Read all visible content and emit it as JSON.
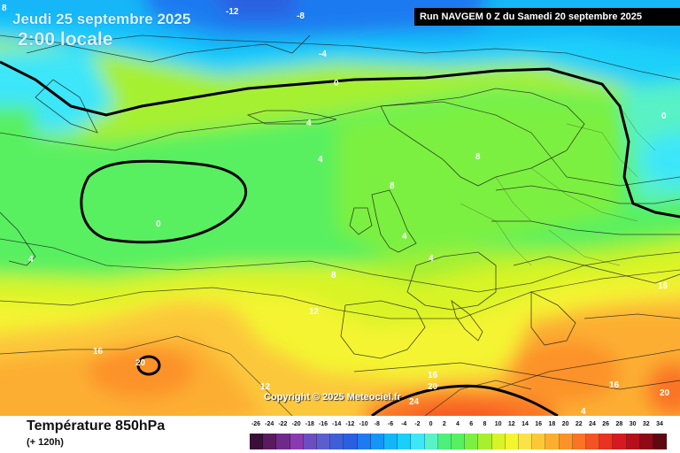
{
  "header": {
    "date_label": "Jeudi 25 septembre 2025",
    "time_label": "2:00 locale",
    "run_label": "Run NAVGEM 0 Z du Samedi 20 septembre 2025"
  },
  "footer": {
    "field_title": "Température 850hPa",
    "lead_time": "(+ 120h)",
    "copyright": "Copyright © 2025 Meteociel.fr"
  },
  "legend": {
    "ticks": [
      "-26",
      "-24",
      "-22",
      "-20",
      "-18",
      "-16",
      "-14",
      "-12",
      "-10",
      "-8",
      "-6",
      "-4",
      "-2",
      "0",
      "2",
      "4",
      "6",
      "8",
      "10",
      "12",
      "14",
      "16",
      "18",
      "20",
      "22",
      "24",
      "26",
      "28",
      "30",
      "32",
      "34"
    ],
    "colors": [
      "#3a0f3a",
      "#5a1b5e",
      "#6e2a8a",
      "#8a3ab0",
      "#6b4fc0",
      "#5a5fcf",
      "#3e5fd8",
      "#2a60e0",
      "#1e7af0",
      "#1696f4",
      "#14b6f8",
      "#1ad0fa",
      "#3ee6f8",
      "#58f2c6",
      "#4ef07a",
      "#58f060",
      "#7cf040",
      "#a6f030",
      "#d8f428",
      "#f4f430",
      "#fce24a",
      "#fcc83a",
      "#fcae30",
      "#fc922a",
      "#fa7426",
      "#f45424",
      "#e83222",
      "#d41a20",
      "#b4101c",
      "#8e0a16",
      "#600812"
    ]
  },
  "map": {
    "contour_labels": [
      "-12",
      "-8",
      "-4",
      "0",
      "4",
      "4",
      "4",
      "4",
      "4",
      "8",
      "8",
      "8",
      "8",
      "12",
      "12",
      "16",
      "16",
      "16",
      "16",
      "20",
      "20",
      "20",
      "24",
      "0",
      "0",
      "4",
      "4"
    ]
  }
}
